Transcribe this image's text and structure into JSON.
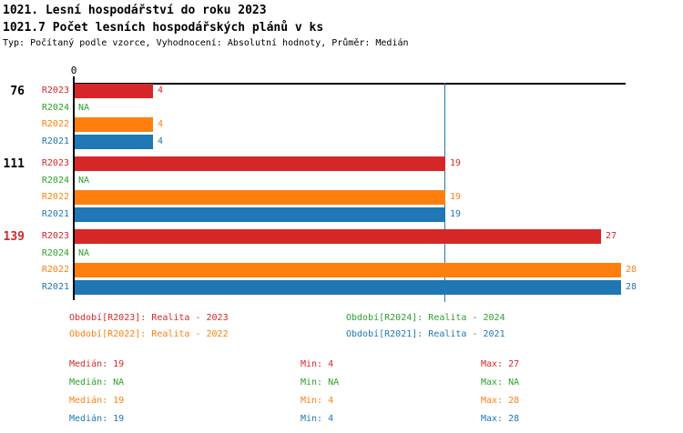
{
  "header": {
    "title": "1021. Lesní hospodářství do roku 2023",
    "subtitle": "1021.7 Počet lesních hospodářských plánů v ks",
    "info": "Typ: Počítaný podle vzorce, Vyhodnocení: Absolutní hodnoty, Průměr: Medián"
  },
  "colors": {
    "red": "#d62728",
    "green": "#2ca02c",
    "orange": "#ff7f0e",
    "blue": "#1f77b4",
    "black": "#000000",
    "axis": "#000000",
    "median_line": "#2e7cb8"
  },
  "chart_data": {
    "type": "bar",
    "orientation": "horizontal",
    "x_axis": {
      "zero_label": "0",
      "xlim": [
        0,
        28.3
      ],
      "grid": false
    },
    "median_reference_line": {
      "value": 19,
      "color_key": "blue"
    },
    "na_text": "NA",
    "series": [
      {
        "id": "R2023",
        "label": "R2023",
        "color_key": "red"
      },
      {
        "id": "R2024",
        "label": "R2024",
        "color_key": "green"
      },
      {
        "id": "R2022",
        "label": "R2022",
        "color_key": "orange"
      },
      {
        "id": "R2021",
        "label": "R2021",
        "color_key": "blue"
      }
    ],
    "groups": [
      {
        "label": "76",
        "label_color_key": "black",
        "values": {
          "R2023": 4,
          "R2024": null,
          "R2022": 4,
          "R2021": 4
        }
      },
      {
        "label": "111",
        "label_color_key": "black",
        "values": {
          "R2023": 19,
          "R2024": null,
          "R2022": 19,
          "R2021": 19
        }
      },
      {
        "label": "139",
        "label_color_key": "red",
        "values": {
          "R2023": 27,
          "R2024": null,
          "R2022": 28,
          "R2021": 28
        }
      }
    ]
  },
  "legend": {
    "items": [
      {
        "text": "Období[R2023]: Realita - 2023",
        "color_key": "red"
      },
      {
        "text": "Období[R2024]: Realita - 2024",
        "color_key": "green"
      },
      {
        "text": "Období[R2022]: Realita - 2022",
        "color_key": "orange"
      },
      {
        "text": "Období[R2021]: Realita - 2021",
        "color_key": "blue"
      }
    ]
  },
  "stats": {
    "labels": {
      "median": "Medián",
      "min": "Min",
      "max": "Max"
    },
    "rows": [
      {
        "series": "R2023",
        "color_key": "red",
        "median": "19",
        "min": "4",
        "max": "27"
      },
      {
        "series": "R2024",
        "color_key": "green",
        "median": "NA",
        "min": "NA",
        "max": "NA"
      },
      {
        "series": "R2022",
        "color_key": "orange",
        "median": "19",
        "min": "4",
        "max": "28"
      },
      {
        "series": "R2021",
        "color_key": "blue",
        "median": "19",
        "min": "4",
        "max": "28"
      }
    ]
  }
}
